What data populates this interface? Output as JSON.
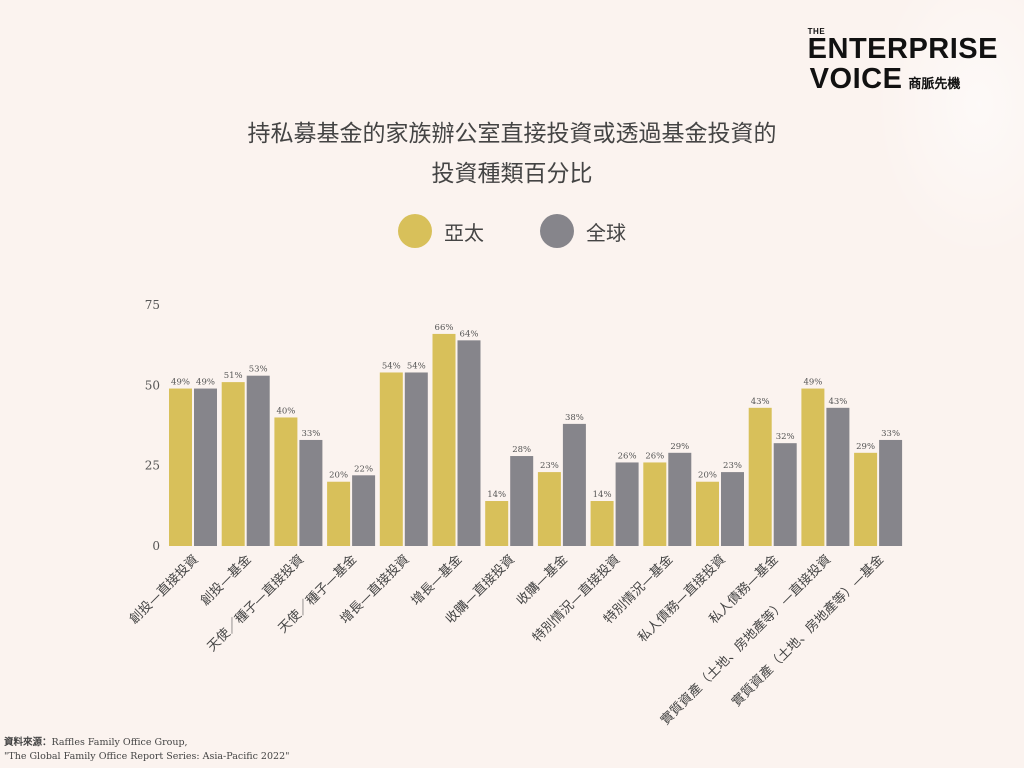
{
  "brand": {
    "the": "THE",
    "line1": "ENTERPRISE",
    "line2": "VOICE",
    "chinese": "商脈先機"
  },
  "title_lines": [
    "持私募基金的家族辦公室直接投資或透過基金投資的",
    "投資種類百分比"
  ],
  "colors": {
    "asia_pacific": "#d8c05a",
    "global": "#86858b",
    "axis_text": "#555555",
    "background": "#fbf3ef"
  },
  "source": {
    "label": "資料來源：",
    "line1": "Raffles Family Office Group,",
    "line2": "\"The Global Family Office Report Series: Asia-Pacific 2022\""
  },
  "chart_data": {
    "type": "bar",
    "title": "持私募基金的家族辦公室直接投資或透過基金投資的 投資種類百分比",
    "xlabel": "",
    "ylabel": "",
    "ylim": [
      0,
      75
    ],
    "yticks": [
      0,
      25,
      50,
      75
    ],
    "grid": false,
    "legend_position": "top-center",
    "categories": [
      "創投—直接投資",
      "創投—基金",
      "天使／種子—直接投資",
      "天使／種子—基金",
      "增長—直接投資",
      "增長—基金",
      "收購—直接投資",
      "收購—基金",
      "特別情況—直接投資",
      "特別情況—基金",
      "私人債務—直接投資",
      "私人債務—基金",
      "實質資產（土地、房地產等）—直接投資",
      "實質資產（土地、房地產等）—基金"
    ],
    "series": [
      {
        "name": "亞太",
        "color": "#d8c05a",
        "values": [
          49,
          51,
          40,
          20,
          54,
          66,
          14,
          23,
          14,
          26,
          20,
          43,
          49,
          29
        ]
      },
      {
        "name": "全球",
        "color": "#86858b",
        "values": [
          49,
          53,
          33,
          22,
          54,
          64,
          28,
          38,
          26,
          29,
          23,
          32,
          43,
          33
        ]
      }
    ]
  }
}
